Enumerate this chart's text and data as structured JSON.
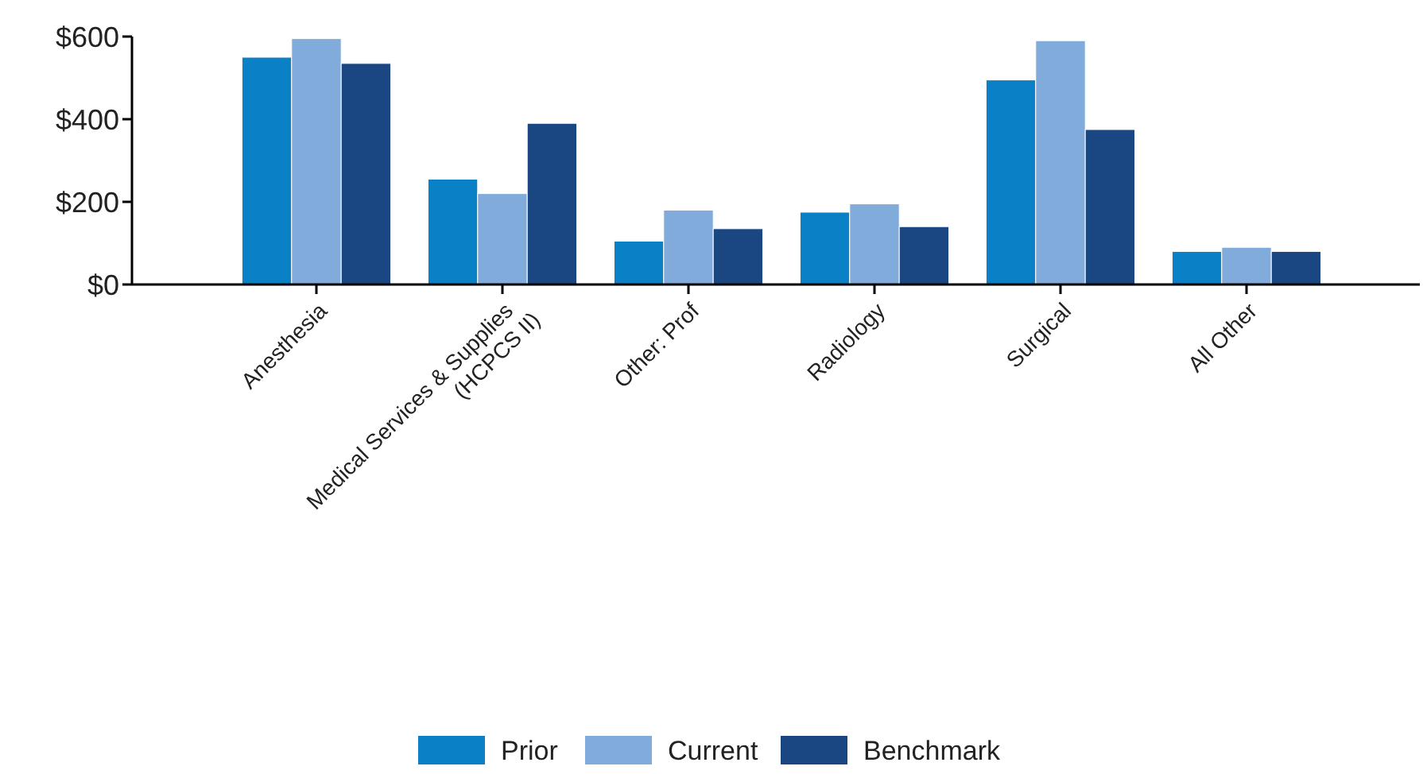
{
  "chart_data": {
    "type": "bar",
    "categories": [
      "Anesthesia",
      "Medical Services & Supplies\n(HCPCS II)",
      "Other: Prof",
      "Radiology",
      "Surgical",
      "All Other"
    ],
    "series": [
      {
        "name": "Prior",
        "color": "#0a81c6",
        "values": [
          550,
          255,
          105,
          175,
          495,
          80
        ]
      },
      {
        "name": "Current",
        "color": "#80abdb",
        "values": [
          595,
          220,
          180,
          195,
          590,
          90
        ]
      },
      {
        "name": "Benchmark",
        "color": "#1a4682",
        "values": [
          535,
          390,
          135,
          140,
          375,
          80
        ]
      }
    ],
    "ylim": [
      0,
      600
    ],
    "yticks": [
      {
        "value": 0,
        "label": "$0"
      },
      {
        "value": 200,
        "label": "$200"
      },
      {
        "value": 400,
        "label": "$400"
      },
      {
        "value": 600,
        "label": "$600"
      }
    ],
    "grid": false,
    "legend": "bottom"
  }
}
